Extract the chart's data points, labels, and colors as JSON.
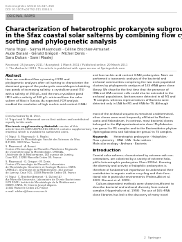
{
  "journal_info": "Extremophiles (2011) 15:347–358",
  "doi": "DOI 10.1007/s00792-011-0364-5",
  "section_label": "ORIGINAL PAPER",
  "title_line1": "Characterization of heterotrophic prokaryote subgroups",
  "title_line2": "in the Sfax coastal solar salterns by combining flow cytometry cell",
  "title_line3": "sorting and phylogenetic analysis",
  "authors": "Hana Trigui · Salma Maamoudi · Céline Brochier-Armanet ·",
  "authors2": "Aude Barani · Gérald Grégori · Michel Denis ·",
  "authors3": "Sara Dukan · Sami Maalej",
  "received": "Received: 25 January 2011 / Accepted: 1 March 2011 / Published online: 20 March 2011",
  "copyright": "© The Author(s) 2011. This article is published with open access at Springerlink.com",
  "abstract_col1": "Here, we combined flow cytometry (FCM) and\nphylogenetic analyses after cell sorting to characterize the\ndominant groups of the prokaryotic assemblages inhabiting\ntwo ponds of increasing salinity: a crystallizer pond (TS)\nwith a salinity of 390 g/L, and the non-crystallizer pond\n(M1) with a salinity of 260 g/L, retrieved from the solar\nsaltern of Sfax in Tunisia. As expected, FCM analysis\nenabled the resolution of high nucleic acid content (HNA)",
  "abstract_col2": "and low nucleic acid content (LNA) prokaryotes. Next, we\nperformed a taxonomic analysis of the bacterial and\narchaeal communities comprising the two most populated\nclusters by phylogenetic analyses of 16S rRNA gene clone\nlibrary. We show for the first time that the presence of\nHNA and LNA content cells could also be extended to the\narchaeal populations. Archaea were detected in all M1 and\nTS samples, whereas representatives of Bacteria were\ndetected only in LNA for M1 and HNA for TS. Although",
  "abstract_col2b": "most of the archaeal sequences remained undetermined,\nother clones were most frequently affiliated to Methan-\nsaeta and Halorubrum. In contrast, most bacterial clones\nbelonged to the Alphaproteobacteria class (Phyllobacter-\nium genus) in M1 samples and to the Bacteroidetes phylum\n(Sphingobacteria and Salinibacter genus) in TS samples.",
  "keywords_line1": "Keywords  Heterotrophic prokaryote · Halophiles ·",
  "keywords_line2": "Flow cytometry · HNA · LSA · Solar saltern ·",
  "keywords_line3": "Molecular ecology · Archaea · Bacteria",
  "intro_col2": "Coastal solar salterns, characterized by extreme salt con-\ncentrations, are colonized by a variety of extreme halo-\nphilic-heterotrophic prokaryotes (Oren 2002a). Knowing\nthe diversity and activity of halophilic prokaryotes is\ntherefore of fundamental importance to understand their\ncontribution to organic matter recycling and their func-\ntional role in particular environments (Pedrós-Alió et al.\n2000; Elissami et al. 2009).\n    Culture-dependent methods were shown insufficient to\ndescribe bacterial and archaeal diversity from natural\nsamples (Hugenholtz et al. 1998). The use of 16S rRNA\nclone libraries has led to the discovery of many novel",
  "communicated": "Communicated by A. Oren.",
  "coauthor1": "H. Trigui and S. Maamoudi are co-first authors and contributed",
  "coauthor2": "equally to this work.",
  "elec1": "Electronic supplementary material",
  "elec2": "  The online version of this",
  "elec3": "article (doi:10.1007/s00792-011-0364-5) contains supplementary",
  "elec4": "material, which is available to authorized users.",
  "affil1a": "H. Trigui · S. Maamoudi · S. Maalej",
  "affil1b": "Laboratoire de Microbiologie, Faculté des Sciences de Sfax,",
  "affil1c": "B.P. 802, 3000 Sfax, Tunisia",
  "affil2a": "S. Maamoudi · A. Barani",
  "affil2b": "Centre d’Océanologie de Marseille, Plateforme Régionale",
  "affil2c": "de Cytométrie pour la Microbiologie, OMEGAs,",
  "affil2d": "Université de la Méditerranée, 163 avenue de Luminy,",
  "affil2e": "Case 901, 13288 Marseille Cedex 09, France",
  "affil3a": "S. Maamoudi · G. Grégori · M. Denis",
  "affil3b": "Centre d’Océanologie de Marseille, Laboratoire",
  "affil3c": "de Microbiologie, Géochimie et Ecologie Marines, CNRS-",
  "affil3d": "UMR6117, Université de la Méditerranée, 163 avenue",
  "affil3e": "de Luminy, Case 901, 13288 Marseille Cedex 09, France",
  "affil4a": "H. Trigui · C. Brochier-Armanet · S. Dukan (&)",
  "affil4b": "Aix Marseille Université, Laboratoire de Chimie Bactérienne",
  "affil4c": "(LPR 9043), Institut de Microbiologie de la Méditerranée",
  "affil4d": "(IBSM), CNRS, 31 Chemin Joseph Aiguier,",
  "affil4e": "13402 Marseille Cedex 20, France",
  "affil4f": "e-mail: sdukan@ibsm.cnrs-mrs.fr",
  "bg_color": "#ffffff",
  "section_bg": "#b8b8b8",
  "header_color": "#777777",
  "line_color": "#999999",
  "text_dark": "#111111",
  "text_mid": "#333333",
  "text_light": "#555555"
}
